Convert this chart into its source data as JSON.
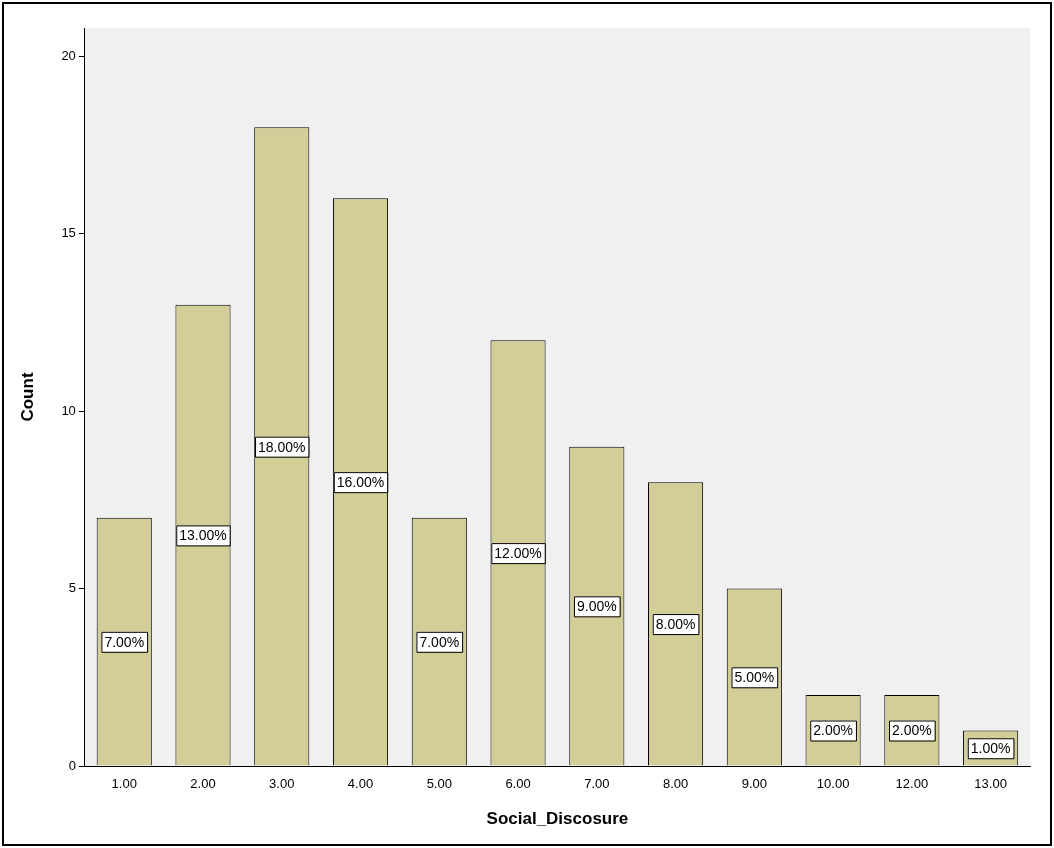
{
  "chart_data": {
    "type": "bar",
    "xlabel": "Social_Discosure",
    "ylabel": "Count",
    "categories": [
      "1.00",
      "2.00",
      "3.00",
      "4.00",
      "5.00",
      "6.00",
      "7.00",
      "8.00",
      "9.00",
      "10.00",
      "12.00",
      "13.00"
    ],
    "values": [
      7,
      13,
      18,
      16,
      7,
      12,
      9,
      8,
      5,
      2,
      2,
      1
    ],
    "value_labels": [
      "7.00%",
      "13.00%",
      "18.00%",
      "16.00%",
      "7.00%",
      "12.00%",
      "9.00%",
      "8.00%",
      "5.00%",
      "2.00%",
      "2.00%",
      "1.00%"
    ],
    "color": "#d3ce97",
    "ylim": [
      0,
      20.8
    ],
    "yticks": [
      0,
      5,
      10,
      15,
      20
    ],
    "grid": false,
    "legend": false
  }
}
